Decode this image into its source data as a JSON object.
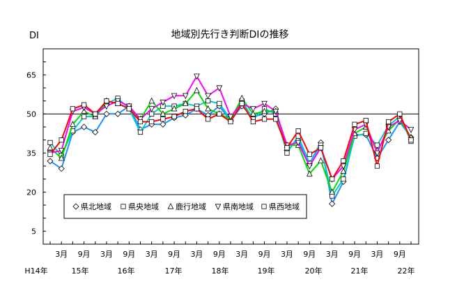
{
  "chart_data": {
    "type": "line",
    "title": "地域別先行き判断DIの推移",
    "ylabel": "DI",
    "ylim": [
      0,
      75
    ],
    "yticks": [
      5,
      20,
      35,
      50,
      65
    ],
    "reference_line": 50,
    "grid": false,
    "legend_position": "bottom-left",
    "x_month_labels": [
      "3月",
      "9月",
      "3月",
      "9月",
      "3月",
      "9月",
      "3月",
      "9月",
      "3月",
      "9月",
      "3月",
      "9月",
      "3月",
      "9月",
      "3月",
      "9月"
    ],
    "x_year_labels": [
      "H14年",
      "15年",
      "16年",
      "17年",
      "18年",
      "19年",
      "20年",
      "21年",
      "22年"
    ],
    "series": [
      {
        "name": "県北地域",
        "color": "#1e90ff",
        "marker": "diamond",
        "values": [
          31.9,
          29,
          43,
          45,
          43,
          50,
          50,
          53,
          44,
          46,
          46,
          48.5,
          49.5,
          52,
          49.5,
          53,
          47.5,
          53,
          49,
          50,
          52,
          36,
          40,
          31,
          39,
          15.5,
          24,
          42,
          42,
          33,
          40,
          47,
          41
        ]
      },
      {
        "name": "県央地域",
        "color": "#00cccc",
        "marker": "square",
        "values": [
          39,
          34,
          43.5,
          49,
          49,
          54,
          56,
          52,
          43,
          50,
          53,
          53,
          54,
          53,
          55,
          54,
          48,
          55,
          48,
          52,
          50,
          35,
          41.5,
          31,
          38,
          18.5,
          25,
          41.5,
          42.5,
          38,
          45.5,
          49,
          39.5
        ]
      },
      {
        "name": "鹿行地域",
        "color": "#00dd00",
        "marker": "triangle",
        "values": [
          37,
          33,
          46,
          51,
          49,
          55,
          54,
          52,
          48,
          55,
          50,
          52,
          54,
          59,
          52,
          50,
          48,
          56,
          50,
          51,
          51,
          38,
          38,
          27,
          32,
          20,
          28,
          42.5,
          45,
          36,
          43.5,
          48,
          41
        ]
      },
      {
        "name": "県南地域",
        "color": "#ff00ff",
        "marker": "down-triangle",
        "values": [
          35,
          36,
          51,
          52.5,
          50,
          53,
          55,
          53,
          48,
          52,
          54.5,
          57,
          57,
          64.5,
          57,
          60,
          49,
          54,
          52,
          54,
          51,
          38,
          39,
          30,
          37,
          25,
          30,
          44,
          46,
          35,
          45,
          47.5,
          44
        ]
      },
      {
        "name": "県西地域",
        "color": "#ff0000",
        "marker": "square",
        "values": [
          34.5,
          40,
          52,
          53.5,
          50,
          55,
          54,
          52,
          47,
          47,
          48,
          49,
          51,
          52,
          48,
          50,
          47,
          54,
          47,
          48,
          48,
          37,
          43.5,
          34.5,
          37,
          25,
          32,
          46,
          47.5,
          30,
          47,
          50,
          40
        ]
      }
    ]
  }
}
